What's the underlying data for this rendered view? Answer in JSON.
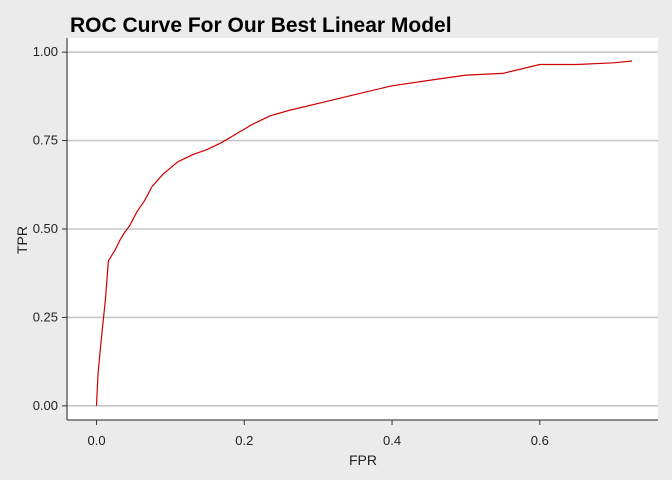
{
  "chart_data": {
    "type": "line",
    "title": "ROC Curve For Our Best Linear Model",
    "xlabel": "FPR",
    "ylabel": "TPR",
    "xlim": [
      -0.04,
      0.76
    ],
    "ylim": [
      -0.04,
      1.04
    ],
    "x_ticks": [
      0.0,
      0.2,
      0.4,
      0.6
    ],
    "x_tick_labels": [
      "0.0",
      "0.2",
      "0.4",
      "0.6"
    ],
    "y_ticks": [
      0.0,
      0.25,
      0.5,
      0.75,
      1.0
    ],
    "y_tick_labels": [
      "0.00",
      "0.25",
      "0.50",
      "0.75",
      "1.00"
    ],
    "grid": "horizontal",
    "series": [
      {
        "color": "#cc0000",
        "x": [
          0.0,
          0.002,
          0.006,
          0.012,
          0.016,
          0.025,
          0.032,
          0.038,
          0.045,
          0.055,
          0.065,
          0.075,
          0.09,
          0.11,
          0.13,
          0.15,
          0.17,
          0.19,
          0.21,
          0.235,
          0.26,
          0.3,
          0.35,
          0.4,
          0.45,
          0.5,
          0.55,
          0.6,
          0.65,
          0.7,
          0.725
        ],
        "y": [
          0.0,
          0.09,
          0.18,
          0.3,
          0.41,
          0.44,
          0.47,
          0.49,
          0.51,
          0.55,
          0.58,
          0.62,
          0.655,
          0.69,
          0.71,
          0.725,
          0.745,
          0.77,
          0.795,
          0.82,
          0.835,
          0.855,
          0.88,
          0.905,
          0.92,
          0.935,
          0.94,
          0.965,
          0.965,
          0.97,
          0.975
        ]
      }
    ]
  }
}
